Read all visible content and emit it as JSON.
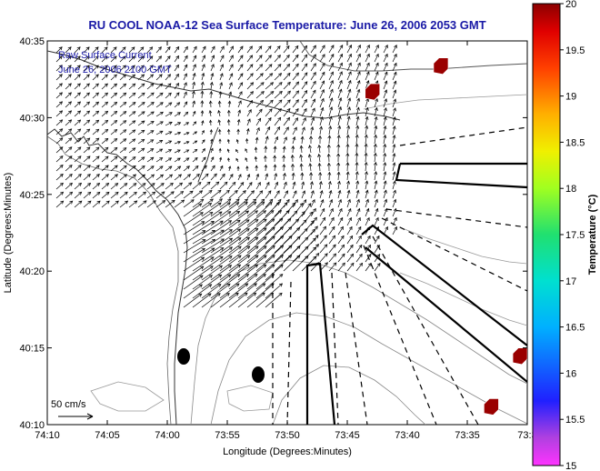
{
  "chart_data": {
    "type": "quiver",
    "title": "RU COOL   NOAA-12  Sea Surface Temperature:  June 26, 2006 2053 GMT",
    "xlabel": "Longitude (Degrees:Minutes)",
    "ylabel": "Latitude (Degrees:Minutes)",
    "legend_title": "Raw Surface Current",
    "legend_time": "June 26, 2006 2100 GMT",
    "scale_label": "50 cm/s",
    "x_ticks": [
      "74:10",
      "74:05",
      "74:00",
      "73:55",
      "73:50",
      "73:45",
      "73:40",
      "73:35",
      "73:3"
    ],
    "y_ticks": [
      "40:10",
      "40:15",
      "40:20",
      "40:25",
      "40:30",
      "40:35"
    ],
    "xlim": [
      -74.1667,
      -73.5
    ],
    "ylim": [
      40.1667,
      40.5833
    ],
    "colorbar": {
      "label": "Temperature (°C)",
      "min": 15,
      "max": 20,
      "ticks": [
        "15",
        "15.5",
        "16",
        "16.5",
        "17",
        "17.5",
        "18",
        "18.5",
        "19",
        "19.5",
        "20"
      ]
    },
    "current_field": [
      {
        "lon": -74.02,
        "lat": 40.52,
        "u": 14,
        "v": 10
      },
      {
        "lon": -74.0,
        "lat": 40.5,
        "u": 18,
        "v": 4
      },
      {
        "lon": -73.98,
        "lat": 40.48,
        "u": 15,
        "v": -10
      },
      {
        "lon": -73.96,
        "lat": 40.52,
        "u": -6,
        "v": 18
      },
      {
        "lon": -73.93,
        "lat": 40.5,
        "u": -18,
        "v": 8
      },
      {
        "lon": -73.9,
        "lat": 40.46,
        "u": -16,
        "v": -8
      },
      {
        "lon": -73.87,
        "lat": 40.52,
        "u": 20,
        "v": 12
      },
      {
        "lon": -73.84,
        "lat": 40.49,
        "u": 12,
        "v": 22
      },
      {
        "lon": -73.8,
        "lat": 40.46,
        "u": -10,
        "v": 20
      },
      {
        "lon": -73.77,
        "lat": 40.5,
        "u": 4,
        "v": 25
      },
      {
        "lon": -73.74,
        "lat": 40.46,
        "u": 0,
        "v": 22
      },
      {
        "lon": -73.94,
        "lat": 40.4,
        "u": 30,
        "v": 16
      },
      {
        "lon": -73.9,
        "lat": 40.38,
        "u": 32,
        "v": 18
      },
      {
        "lon": -73.86,
        "lat": 40.36,
        "u": 26,
        "v": 24
      },
      {
        "lon": -73.96,
        "lat": 40.36,
        "u": 34,
        "v": 14
      },
      {
        "lon": -73.92,
        "lat": 40.34,
        "u": 30,
        "v": 20
      }
    ],
    "temperature_patches": [
      {
        "lon": -73.62,
        "lat": 40.555,
        "temp": 19.9
      },
      {
        "lon": -73.715,
        "lat": 40.527,
        "temp": 19.8
      },
      {
        "lon": -73.55,
        "lat": 40.185,
        "temp": 19.9
      },
      {
        "lon": -73.51,
        "lat": 40.24,
        "temp": 19.8
      }
    ]
  }
}
